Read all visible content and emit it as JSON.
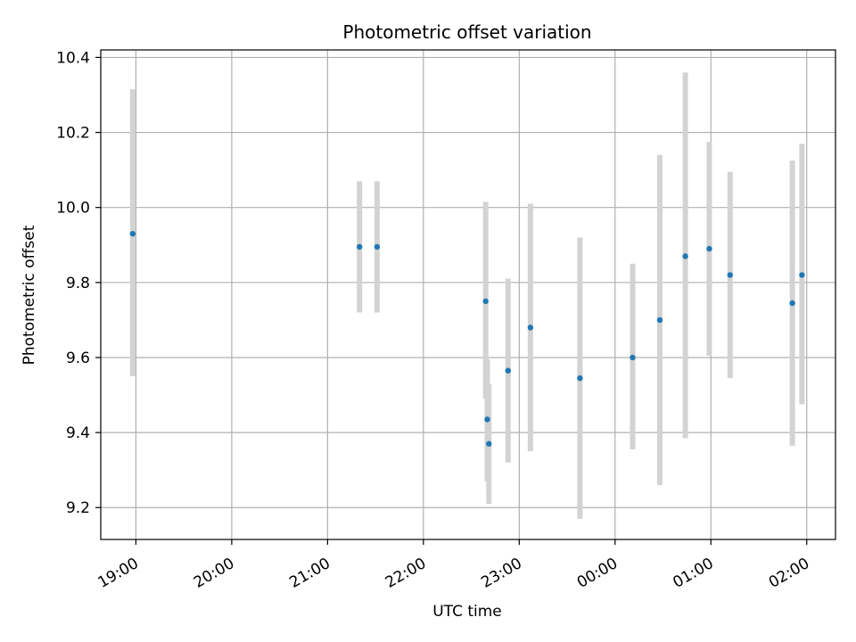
{
  "chart_data": {
    "type": "scatter",
    "title": "Photometric offset variation",
    "xlabel": "UTC time",
    "ylabel": "Photometric offset",
    "x_ticks": [
      "19:00",
      "20:00",
      "21:00",
      "22:00",
      "23:00",
      "00:00",
      "01:00",
      "02:00"
    ],
    "y_ticks": [
      "9.2",
      "9.4",
      "9.6",
      "9.8",
      "10.0",
      "10.2",
      "10.4"
    ],
    "xlim": [
      "18:38",
      "02:18"
    ],
    "ylim": [
      9.115,
      10.42
    ],
    "grid": true,
    "point_color": "#1f77b4",
    "errorbar_color": "#d3d3d3",
    "points": [
      {
        "x": "18:58",
        "y": 9.93,
        "lo": 9.55,
        "hi": 10.315
      },
      {
        "x": "21:20",
        "y": 9.895,
        "lo": 9.72,
        "hi": 10.07
      },
      {
        "x": "21:31",
        "y": 9.895,
        "lo": 9.72,
        "hi": 10.07
      },
      {
        "x": "22:39",
        "y": 9.75,
        "lo": 9.49,
        "hi": 10.015
      },
      {
        "x": "22:40",
        "y": 9.435,
        "lo": 9.27,
        "hi": 9.595
      },
      {
        "x": "22:41",
        "y": 9.37,
        "lo": 9.21,
        "hi": 9.53
      },
      {
        "x": "22:53",
        "y": 9.565,
        "lo": 9.32,
        "hi": 9.81
      },
      {
        "x": "23:07",
        "y": 9.68,
        "lo": 9.35,
        "hi": 10.01
      },
      {
        "x": "23:38",
        "y": 9.545,
        "lo": 9.17,
        "hi": 9.92
      },
      {
        "x": "00:11",
        "y": 9.6,
        "lo": 9.355,
        "hi": 9.85
      },
      {
        "x": "00:28",
        "y": 9.7,
        "lo": 9.26,
        "hi": 10.14
      },
      {
        "x": "00:44",
        "y": 9.87,
        "lo": 9.385,
        "hi": 10.36
      },
      {
        "x": "00:59",
        "y": 9.89,
        "lo": 9.605,
        "hi": 10.175
      },
      {
        "x": "01:12",
        "y": 9.82,
        "lo": 9.545,
        "hi": 10.095
      },
      {
        "x": "01:51",
        "y": 9.745,
        "lo": 9.365,
        "hi": 10.125
      },
      {
        "x": "01:57",
        "y": 9.82,
        "lo": 9.475,
        "hi": 10.17
      }
    ]
  }
}
